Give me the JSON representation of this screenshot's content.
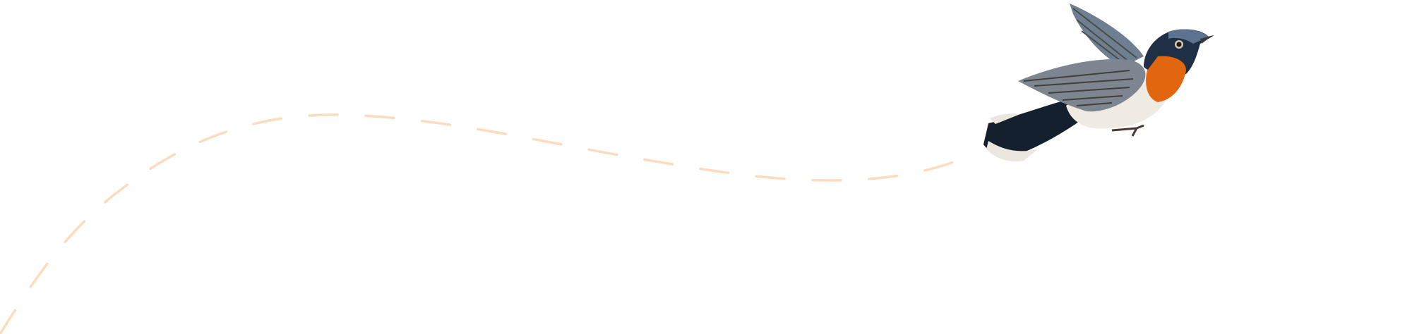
{
  "colors": {
    "background": "#ffffff",
    "flight_path": "#fcdcbf",
    "bird_head": "#1f2f45",
    "bird_throat": "#e2650f",
    "bird_belly": "#efebe2",
    "bird_wing": "#7d8590",
    "bird_tail": "#15202e"
  },
  "icons": {
    "bird": "flycatcher-bird-illustration",
    "path": "dashed-flight-path"
  }
}
